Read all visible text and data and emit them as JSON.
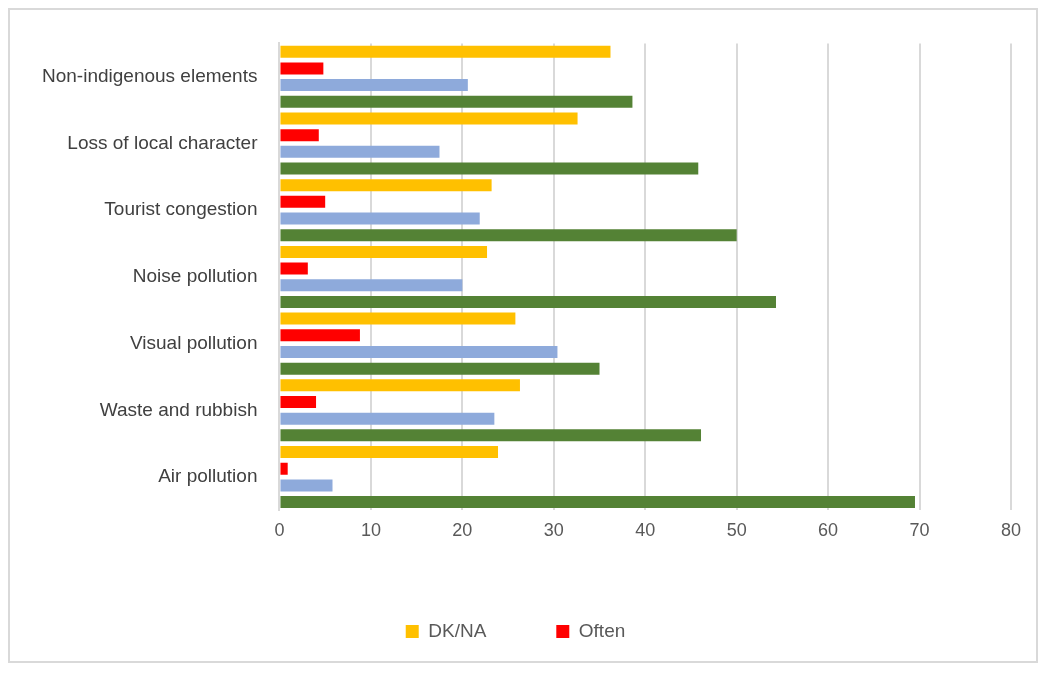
{
  "chart_data": {
    "type": "bar",
    "orientation": "horizontal",
    "categories": [
      "Non-indigenous elements",
      "Loss of local character",
      "Tourist congestion",
      "Noise pollution",
      "Visual pollution",
      "Waste and rubbish",
      "Air pollution"
    ],
    "series": [
      {
        "name": "DK/NA",
        "color": "#ffc000",
        "values": [
          36.2,
          32.6,
          23.2,
          22.7,
          25.8,
          26.3,
          23.9
        ]
      },
      {
        "name": "Often",
        "color": "#ff0000",
        "values": [
          4.8,
          4.3,
          5.0,
          3.1,
          8.8,
          4.0,
          0.9
        ]
      },
      {
        "color": "#8eaadb",
        "values": [
          20.6,
          17.5,
          21.9,
          20.0,
          30.4,
          23.5,
          5.8
        ]
      },
      {
        "color": "#548235",
        "values": [
          38.6,
          45.8,
          50.0,
          54.3,
          35.0,
          46.1,
          69.5
        ]
      }
    ],
    "xlim": [
      0,
      80
    ],
    "xticks": [
      0,
      10,
      20,
      30,
      40,
      50,
      60,
      70,
      80
    ],
    "grid": "x",
    "legend": "bottom"
  }
}
